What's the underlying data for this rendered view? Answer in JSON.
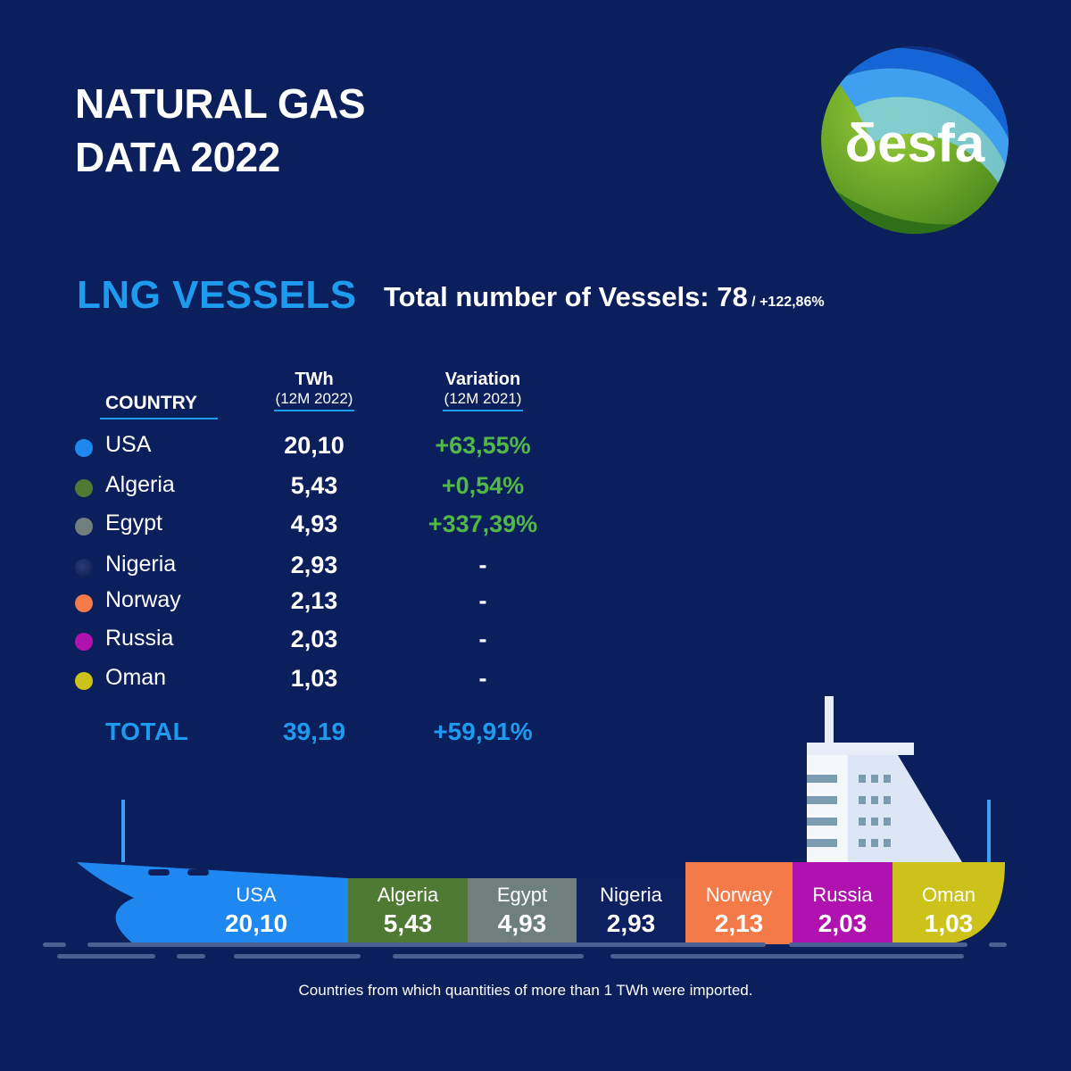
{
  "header": {
    "title_line1": "NATURAL GAS",
    "title_line2": "DATA 2022",
    "logo_text": "δesfa"
  },
  "section": {
    "title": "LNG VESSELS",
    "total_label": "Total number of Vessels: 78",
    "total_variation": " / +122,86%"
  },
  "table": {
    "country_header": "COUNTRY",
    "twh_header": "TWh",
    "twh_sub": "(12M 2022)",
    "var_header": "Variation",
    "var_sub": "(12M 2021)",
    "total_label": "TOTAL",
    "total_value": "39,19",
    "total_variation": "+59,91%"
  },
  "colors": {
    "background": "#0a1f5c",
    "accent": "#1e9bef",
    "positive": "#52b848"
  },
  "chart_data": {
    "type": "bar",
    "categories": [
      "USA",
      "Algeria",
      "Egypt",
      "Nigeria",
      "Norway",
      "Russia",
      "Oman"
    ],
    "values": [
      20.1,
      5.43,
      4.93,
      2.93,
      2.13,
      2.03,
      1.03
    ],
    "value_labels": [
      "20,10",
      "5,43",
      "4,93",
      "2,93",
      "2,13",
      "2,03",
      "1,03"
    ],
    "variation": [
      "+63,55%",
      "+0,54%",
      "+337,39%",
      "-",
      "-",
      "-",
      "-"
    ],
    "colors": [
      "#1e88f0",
      "#4f7a34",
      "#6f7f7e",
      "#0d2060",
      "#f47a4a",
      "#b012b0",
      "#cdc21a"
    ]
  },
  "footnote": "Countries from which quantities of more than 1 TWh were imported."
}
